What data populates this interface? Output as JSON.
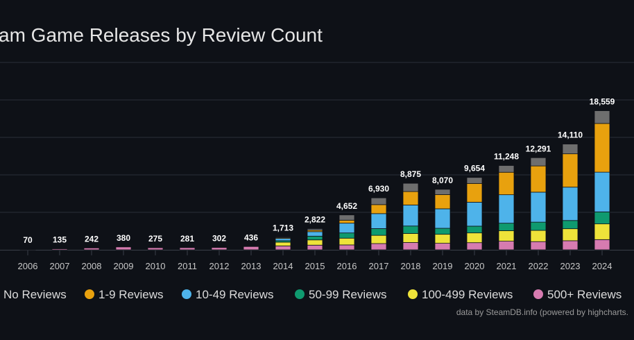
{
  "chart_data": {
    "type": "stacked-bar",
    "title": "am Game Releases by Review Count",
    "credit": "data by SteamDB.info (powered by highcharts.",
    "categories": [
      "2006",
      "2007",
      "2008",
      "2009",
      "2010",
      "2011",
      "2012",
      "2013",
      "2014",
      "2015",
      "2016",
      "2017",
      "2018",
      "2019",
      "2020",
      "2021",
      "2022",
      "2023",
      "2024"
    ],
    "series": [
      {
        "name": "No Reviews",
        "color": "#6e6e6e",
        "values": [
          0,
          0,
          0,
          0,
          0,
          0,
          0,
          0,
          100,
          200,
          700,
          900,
          1100,
          700,
          800,
          900,
          1100,
          1300,
          1700
        ]
      },
      {
        "name": "1-9 Reviews",
        "color": "#e8a10e",
        "values": [
          0,
          0,
          0,
          0,
          0,
          0,
          0,
          0,
          100,
          200,
          400,
          1200,
          1800,
          1900,
          2500,
          3000,
          3500,
          4450,
          6500
        ]
      },
      {
        "name": "10-49 Reviews",
        "color": "#4eb3ea",
        "values": [
          0,
          0,
          0,
          0,
          0,
          0,
          0,
          0,
          300,
          600,
          1300,
          2000,
          2800,
          2600,
          3200,
          3800,
          4000,
          4450,
          5300
        ]
      },
      {
        "name": "50-99 Reviews",
        "color": "#0f9a6f",
        "values": [
          0,
          0,
          0,
          0,
          0,
          0,
          0,
          0,
          200,
          500,
          700,
          900,
          1000,
          800,
          900,
          1000,
          1100,
          1100,
          1600
        ]
      },
      {
        "name": "100-499 Reviews",
        "color": "#eee33a",
        "values": [
          0,
          0,
          0,
          0,
          0,
          0,
          0,
          0,
          500,
          700,
          900,
          1100,
          1200,
          1200,
          1300,
          1400,
          1500,
          1600,
          2100
        ]
      },
      {
        "name": "500+ Reviews",
        "color": "#d67bb0",
        "values": [
          70,
          135,
          242,
          380,
          275,
          281,
          302,
          436,
          513,
          622,
          652,
          830,
          975,
          870,
          954,
          1148,
          1091,
          1210,
          1359
        ]
      }
    ],
    "totals": [
      70,
      135,
      242,
      380,
      275,
      281,
      302,
      436,
      1713,
      2822,
      4652,
      6930,
      8875,
      8070,
      9654,
      11248,
      12291,
      14110,
      18559
    ],
    "total_labels": [
      "70",
      "135",
      "242",
      "380",
      "275",
      "281",
      "302",
      "436",
      "1,713",
      "2,822",
      "4,652",
      "6,930",
      "8,875",
      "8,070",
      "9,654",
      "11,248",
      "12,291",
      "14,110",
      "18,559"
    ],
    "ylim": [
      0,
      25000
    ],
    "ygrid": [
      5000,
      10000,
      15000,
      20000,
      25000
    ],
    "grid": true
  }
}
